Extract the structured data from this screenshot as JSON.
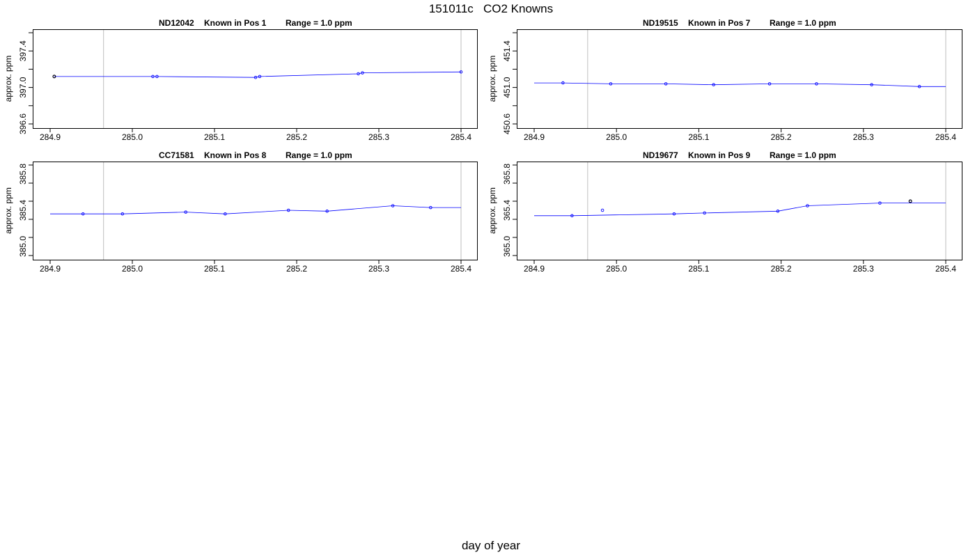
{
  "page_title": "151011c   CO2 Knowns",
  "x_axis_title": "day of year",
  "colors": {
    "line": "#0000ff",
    "points": "#0000ff",
    "marker_line": "#bebebe",
    "frame": "#000000"
  },
  "chart_data": [
    {
      "type": "line",
      "title_parts": [
        "ND12042",
        "Known in Pos 1",
        "Range = 1.0 ppm"
      ],
      "ylabel": "approx. ppm",
      "xlim": [
        284.9,
        285.4
      ],
      "ylim": [
        396.6,
        397.6
      ],
      "x_ticks": [
        "284.9",
        "285.0",
        "285.1",
        "285.2",
        "285.3",
        "285.4"
      ],
      "y_ticks": [
        "396.6",
        "397.0",
        "397.4"
      ],
      "vlines": [
        284.965,
        285.4
      ],
      "line": {
        "x": [
          284.905,
          285.025,
          285.03,
          285.15,
          285.155,
          285.275,
          285.28,
          285.4
        ],
        "y": [
          397.12,
          397.12,
          397.12,
          397.11,
          397.12,
          397.15,
          397.16,
          397.17
        ]
      },
      "points": {
        "x": [
          284.905,
          285.025,
          285.03,
          285.15,
          285.155,
          285.275,
          285.28,
          285.4
        ],
        "y": [
          397.12,
          397.12,
          397.12,
          397.11,
          397.12,
          397.15,
          397.16,
          397.17
        ]
      },
      "outliers": {
        "x": [
          284.905
        ],
        "y": [
          397.12
        ]
      }
    },
    {
      "type": "line",
      "title_parts": [
        "ND19515",
        "Known in Pos 7",
        "Range = 1.0 ppm"
      ],
      "ylabel": "approx. ppm",
      "xlim": [
        284.9,
        285.4
      ],
      "ylim": [
        450.6,
        451.6
      ],
      "x_ticks": [
        "284.9",
        "285.0",
        "285.1",
        "285.2",
        "285.3",
        "285.4"
      ],
      "y_ticks": [
        "450.6",
        "451.0",
        "451.4"
      ],
      "vlines": [
        284.965,
        285.4
      ],
      "line": {
        "x": [
          284.9,
          284.935,
          284.993,
          285.06,
          285.118,
          285.186,
          285.243,
          285.31,
          285.368,
          285.4
        ],
        "y": [
          451.05,
          451.05,
          451.04,
          451.04,
          451.03,
          451.04,
          451.04,
          451.03,
          451.01,
          451.01
        ]
      },
      "points": {
        "x": [
          284.935,
          284.993,
          285.06,
          285.118,
          285.186,
          285.243,
          285.31,
          285.368
        ],
        "y": [
          451.05,
          451.04,
          451.04,
          451.03,
          451.04,
          451.04,
          451.03,
          451.01
        ]
      },
      "outliers": {
        "x": [],
        "y": []
      }
    },
    {
      "type": "line",
      "title_parts": [
        "CC71581",
        "Known in Pos 8",
        "Range = 1.0 ppm"
      ],
      "ylabel": "approx. ppm",
      "xlim": [
        284.9,
        285.4
      ],
      "ylim": [
        384.9,
        385.9
      ],
      "x_ticks": [
        "284.9",
        "285.0",
        "285.1",
        "285.2",
        "285.3",
        "285.4"
      ],
      "y_ticks": [
        "385.0",
        "385.4",
        "385.8"
      ],
      "vlines": [
        284.965,
        285.4
      ],
      "line": {
        "x": [
          284.9,
          284.94,
          284.988,
          285.065,
          285.113,
          285.19,
          285.237,
          285.317,
          285.363,
          285.4
        ],
        "y": [
          385.36,
          385.36,
          385.36,
          385.38,
          385.36,
          385.4,
          385.39,
          385.45,
          385.43,
          385.43
        ]
      },
      "points": {
        "x": [
          284.94,
          284.988,
          285.065,
          285.113,
          285.19,
          285.237,
          285.317,
          285.363
        ],
        "y": [
          385.36,
          385.36,
          385.38,
          385.36,
          385.4,
          385.39,
          385.45,
          385.43
        ]
      },
      "outliers": {
        "x": [],
        "y": []
      }
    },
    {
      "type": "line",
      "title_parts": [
        "ND19677",
        "Known in Pos 9",
        "Range = 1.0 ppm"
      ],
      "ylabel": "approx. ppm",
      "xlim": [
        284.9,
        285.4
      ],
      "ylim": [
        364.9,
        365.9
      ],
      "x_ticks": [
        "284.9",
        "285.0",
        "285.1",
        "285.2",
        "285.3",
        "285.4"
      ],
      "y_ticks": [
        "365.0",
        "365.4",
        "365.8"
      ],
      "vlines": [
        284.965,
        285.4
      ],
      "line": {
        "x": [
          284.9,
          284.946,
          285.07,
          285.107,
          285.196,
          285.232,
          285.32,
          285.4
        ],
        "y": [
          365.34,
          365.34,
          365.36,
          365.37,
          365.39,
          365.45,
          365.48,
          365.48
        ]
      },
      "points": {
        "x": [
          284.946,
          284.983,
          285.07,
          285.107,
          285.196,
          285.232,
          285.32,
          285.357
        ],
        "y": [
          365.34,
          365.4,
          365.36,
          365.37,
          365.39,
          365.45,
          365.48,
          365.5
        ]
      },
      "outliers": {
        "x": [
          285.357
        ],
        "y": [
          365.5
        ]
      }
    }
  ]
}
